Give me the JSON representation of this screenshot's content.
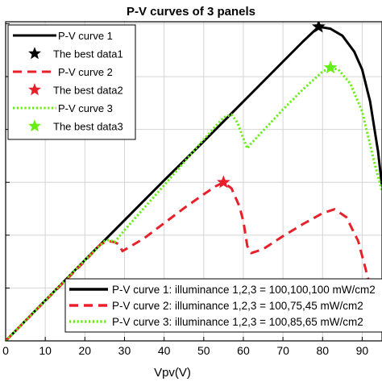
{
  "chart_data": {
    "type": "line",
    "title": "P-V curves of 3 panels",
    "xlabel": "Vpv(V)",
    "ylabel": "",
    "xlim": [
      0,
      95
    ],
    "ylim": [
      0,
      320
    ],
    "x_ticks": [
      0,
      10,
      20,
      30,
      40,
      50,
      60,
      70,
      80,
      90
    ],
    "y_gridlines": [
      0,
      53,
      106,
      159,
      212,
      265,
      318
    ],
    "grid": true,
    "series": [
      {
        "name": "P-V curve 1",
        "color": "#000000",
        "style": "solid",
        "x": [
          0,
          10,
          20,
          25,
          30,
          40,
          50,
          60,
          70,
          75,
          79,
          82,
          85,
          88,
          90,
          92,
          94,
          95
        ],
        "y": [
          0,
          40.5,
          81,
          101,
          121,
          161,
          200,
          240,
          280,
          300,
          315,
          313,
          306,
          290,
          272,
          240,
          190,
          155
        ]
      },
      {
        "name": "P-V curve 2",
        "color": "#e8202a",
        "style": "dashed",
        "x": [
          0,
          10,
          20,
          24,
          26,
          27.5,
          28.5,
          29.5,
          35,
          40,
          45,
          50,
          53,
          55,
          57,
          59,
          60,
          61,
          62,
          65,
          70,
          75,
          80,
          83,
          86,
          89,
          92,
          94
        ],
        "y": [
          0,
          40,
          80,
          97,
          100,
          99,
          97,
          90,
          103,
          118,
          133,
          147,
          155,
          159,
          153,
          135,
          120,
          95,
          88,
          92,
          105,
          117,
          128,
          132,
          124,
          100,
          55,
          10
        ]
      },
      {
        "name": "P-V curve 3",
        "color": "#66ee11",
        "style": "dotted",
        "x": [
          0,
          10,
          20,
          25,
          26,
          27,
          27.5,
          30,
          40,
          50,
          55,
          57,
          58.5,
          60,
          61,
          62,
          70,
          75,
          80,
          82,
          84,
          87,
          90,
          93,
          95
        ],
        "y": [
          0,
          40.5,
          81,
          100,
          101,
          100,
          99,
          111,
          156,
          202,
          224,
          227,
          219,
          203,
          193,
          198,
          232,
          252,
          270,
          274,
          272,
          258,
          230,
          180,
          150
        ]
      }
    ],
    "markers": [
      {
        "name": "The best data1",
        "x": 79,
        "y": 315,
        "color": "#000000"
      },
      {
        "name": "The best data2",
        "x": 55,
        "y": 159,
        "color": "#e8202a"
      },
      {
        "name": "The best data3",
        "x": 82,
        "y": 274,
        "color": "#66ee11"
      }
    ],
    "legend_top_left": [
      {
        "label": "P-V curve 1",
        "kind": "line",
        "color": "#000000",
        "style": "solid"
      },
      {
        "label": "The best data1",
        "kind": "star",
        "color": "#000000"
      },
      {
        "label": "P-V curve 2",
        "kind": "line",
        "color": "#e8202a",
        "style": "dashed"
      },
      {
        "label": "The best data2",
        "kind": "star",
        "color": "#e8202a"
      },
      {
        "label": "P-V curve 3",
        "kind": "line",
        "color": "#66ee11",
        "style": "dotted"
      },
      {
        "label": "The best data3",
        "kind": "star",
        "color": "#66ee11"
      }
    ],
    "legend_bottom_right": [
      {
        "label": "P-V curve 1: illuminance 1,2,3 = 100,100,100 mW/cm2",
        "color": "#000000",
        "style": "solid"
      },
      {
        "label": "P-V curve 2: illuminance 1,2,3 = 100,75,45 mW/cm2",
        "color": "#e8202a",
        "style": "dashed"
      },
      {
        "label": "P-V curve 3: illuminance 1,2,3 = 100,85,65 mW/cm2",
        "color": "#66ee11",
        "style": "dotted"
      }
    ]
  }
}
